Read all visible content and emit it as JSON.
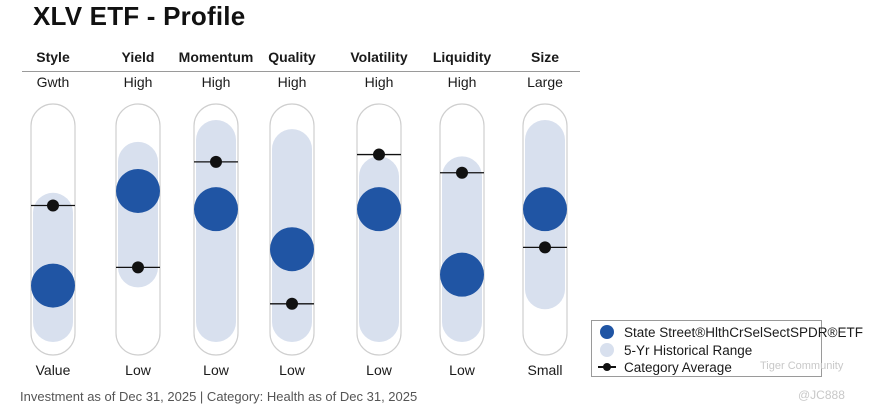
{
  "title": "XLV ETF - Profile",
  "chart_data": {
    "type": "style-profile",
    "scale": "0 (bottom label) to 100 (top label)",
    "columns": [
      {
        "name": "Style",
        "top": "Gwth",
        "bottom": "Value",
        "range": [
          0,
          60
        ],
        "fund": 20,
        "category": 64
      },
      {
        "name": "Yield",
        "top": "High",
        "bottom": "Low",
        "range": [
          30,
          88
        ],
        "fund": 72,
        "category": 30
      },
      {
        "name": "Momentum",
        "top": "High",
        "bottom": "Low",
        "range": [
          0,
          100
        ],
        "fund": 62,
        "category": 88
      },
      {
        "name": "Quality",
        "top": "High",
        "bottom": "Low",
        "range": [
          0,
          95
        ],
        "fund": 40,
        "category": 10
      },
      {
        "name": "Volatility",
        "top": "High",
        "bottom": "Low",
        "range": [
          0,
          80
        ],
        "fund": 62,
        "category": 92
      },
      {
        "name": "Liquidity",
        "top": "High",
        "bottom": "Low",
        "range": [
          0,
          80
        ],
        "fund": 26,
        "category": 82
      },
      {
        "name": "Size",
        "top": "Large",
        "bottom": "Small",
        "range": [
          18,
          100
        ],
        "fund": 62,
        "category": 41
      }
    ]
  },
  "legend": {
    "fund": "State Street®HlthCrSelSectSPDR®ETF",
    "range": "5-Yr Historical Range",
    "category": "Category Average"
  },
  "footer": "Investment as of Dec 31, 2025 | Category: Health as of Dec 31, 2025",
  "watermark": {
    "community": "Tiger Community",
    "user": "@JC888"
  },
  "colors": {
    "fund": "#2055a4",
    "range": "#d8e0ee",
    "track_border": "#cfcfcf",
    "marker": "#111111"
  }
}
